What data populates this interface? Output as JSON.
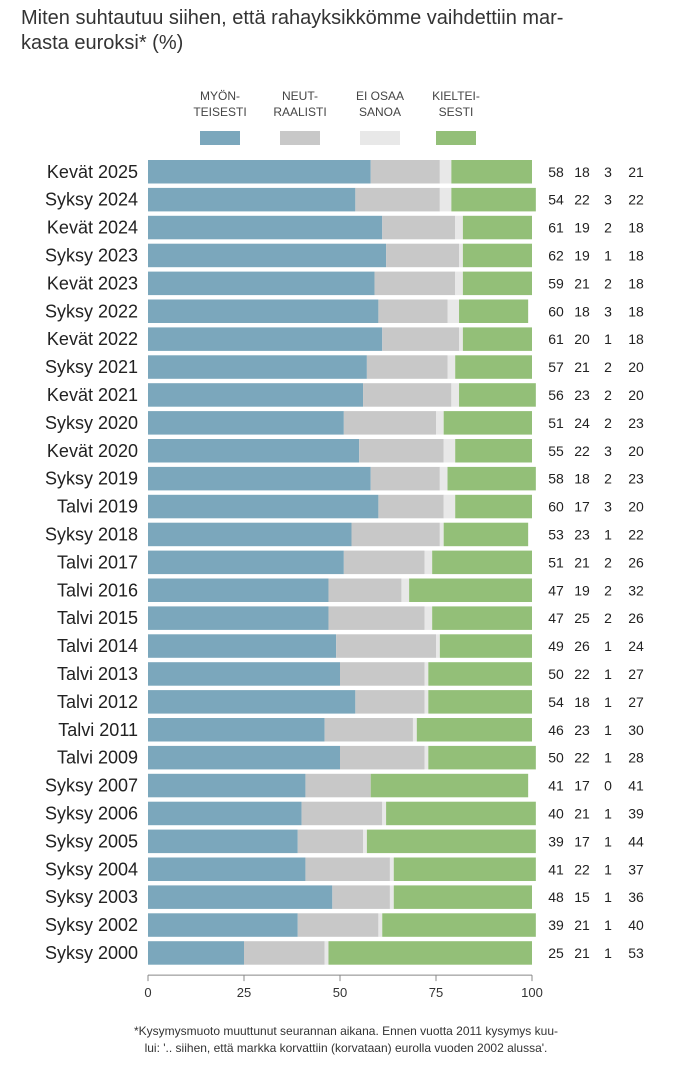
{
  "chart_data": {
    "type": "bar",
    "stacked": true,
    "orientation": "horizontal",
    "title": "Miten suhtautuu siihen, että rahayksikkömme vaihdettiin mar-\nkasta euroksi* (%)",
    "footnote_line1": "*Kysymysmuoto muuttunut seurannan aikana. Ennen vuotta 2011 kysymys kuu-",
    "footnote_line2": "lui: '.. siihen, että markka korvattiin (korvataan) eurolla vuoden 2002 alussa'.",
    "xlim": [
      0,
      100
    ],
    "xticks": [
      "0",
      "25",
      "50",
      "75",
      "100"
    ],
    "legend_position": "top",
    "categories": [
      "Kevät 2025",
      "Syksy 2024",
      "Kevät 2024",
      "Syksy 2023",
      "Kevät 2023",
      "Syksy 2022",
      "Kevät 2022",
      "Syksy 2021",
      "Kevät 2021",
      "Syksy 2020",
      "Kevät 2020",
      "Syksy 2019",
      "Talvi 2019",
      "Syksy 2018",
      "Talvi 2017",
      "Talvi 2016",
      "Talvi 2015",
      "Talvi 2014",
      "Talvi 2013",
      "Talvi 2012",
      "Talvi 2011",
      "Talvi 2009",
      "Syksy 2007",
      "Syksy 2006",
      "Syksy 2005",
      "Syksy 2004",
      "Syksy 2003",
      "Syksy 2002",
      "Syksy 2000"
    ],
    "series": [
      {
        "name": "MYÖN-\nTEISESTI",
        "color": "#7ba7bc",
        "values": [
          58,
          54,
          61,
          62,
          59,
          60,
          61,
          57,
          56,
          51,
          55,
          58,
          60,
          53,
          51,
          47,
          47,
          49,
          50,
          54,
          46,
          50,
          41,
          40,
          39,
          41,
          48,
          39,
          25
        ]
      },
      {
        "name": "NEUT-\nRAALISTI",
        "color": "#c8c8c8",
        "values": [
          18,
          22,
          19,
          19,
          21,
          18,
          20,
          21,
          23,
          24,
          22,
          18,
          17,
          23,
          21,
          19,
          25,
          26,
          22,
          18,
          23,
          22,
          17,
          21,
          17,
          22,
          15,
          21,
          21
        ]
      },
      {
        "name": "EI OSAA\nSANOA",
        "color": "#e8e8e8",
        "values": [
          3,
          3,
          2,
          1,
          2,
          3,
          1,
          2,
          2,
          2,
          3,
          2,
          3,
          1,
          2,
          2,
          2,
          1,
          1,
          1,
          1,
          1,
          0,
          1,
          1,
          1,
          1,
          1,
          1
        ]
      },
      {
        "name": "KIELTEI-\nSESTI",
        "color": "#93bf78",
        "values": [
          21,
          22,
          18,
          18,
          18,
          18,
          18,
          20,
          20,
          23,
          20,
          23,
          20,
          22,
          26,
          32,
          26,
          24,
          27,
          27,
          30,
          28,
          41,
          39,
          44,
          37,
          36,
          40,
          53
        ]
      }
    ]
  }
}
